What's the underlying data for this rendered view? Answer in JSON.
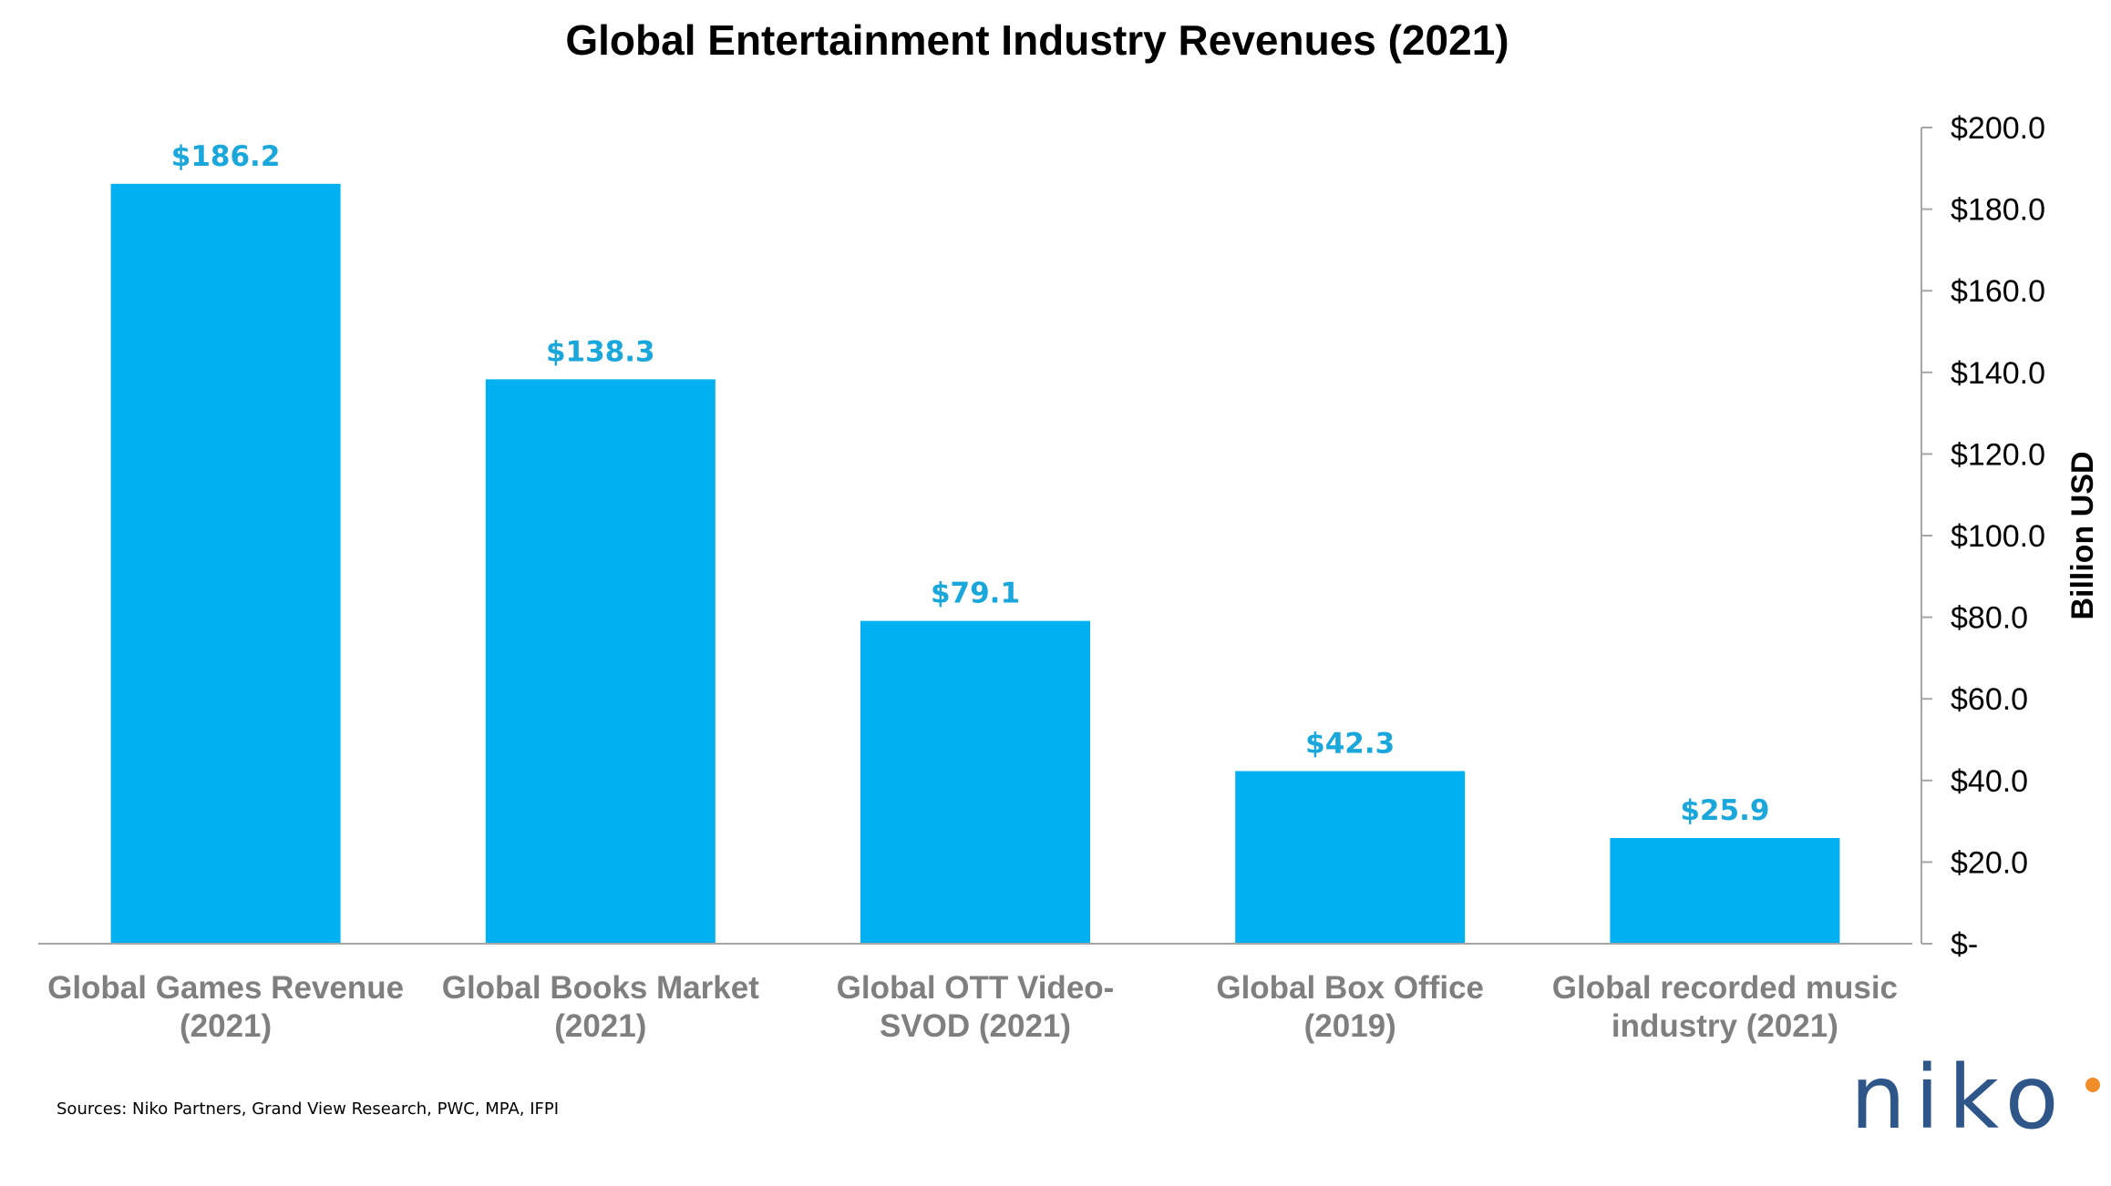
{
  "chart_data": {
    "type": "bar",
    "title": "Global Entertainment Industry Revenues (2021)",
    "ylabel": "Billion USD",
    "xlabel": "",
    "categories": [
      [
        "Global Games Revenue",
        "(2021)"
      ],
      [
        "Global Books Market",
        "(2021)"
      ],
      [
        "Global OTT Video-",
        "SVOD (2021)"
      ],
      [
        "Global Box Office",
        "(2019)"
      ],
      [
        "Global recorded music",
        "industry (2021)"
      ]
    ],
    "values": [
      186.2,
      138.3,
      79.1,
      42.3,
      25.9
    ],
    "data_labels": [
      "$186.2",
      "$138.3",
      "$79.1",
      "$42.3",
      "$25.9"
    ],
    "ylim": [
      0,
      200
    ],
    "y_axis_position": "right",
    "y_ticks": [
      0,
      20,
      40,
      60,
      80,
      100,
      120,
      140,
      160,
      180,
      200
    ],
    "y_tick_labels": [
      "$-",
      "$20.0",
      "$40.0",
      "$60.0",
      "$80.0",
      "$100.0",
      "$120.0",
      "$140.0",
      "$160.0",
      "$180.0",
      "$200.0"
    ],
    "grid": false,
    "colors": {
      "bar": "#00b0f0",
      "data_label": "#1aa7dc"
    }
  },
  "footer": {
    "source": "Sources: Niko Partners, Grand View Research, PWC, MPA, IFPI",
    "logo_text": "niko",
    "logo_dot_color": "#f28c28"
  }
}
